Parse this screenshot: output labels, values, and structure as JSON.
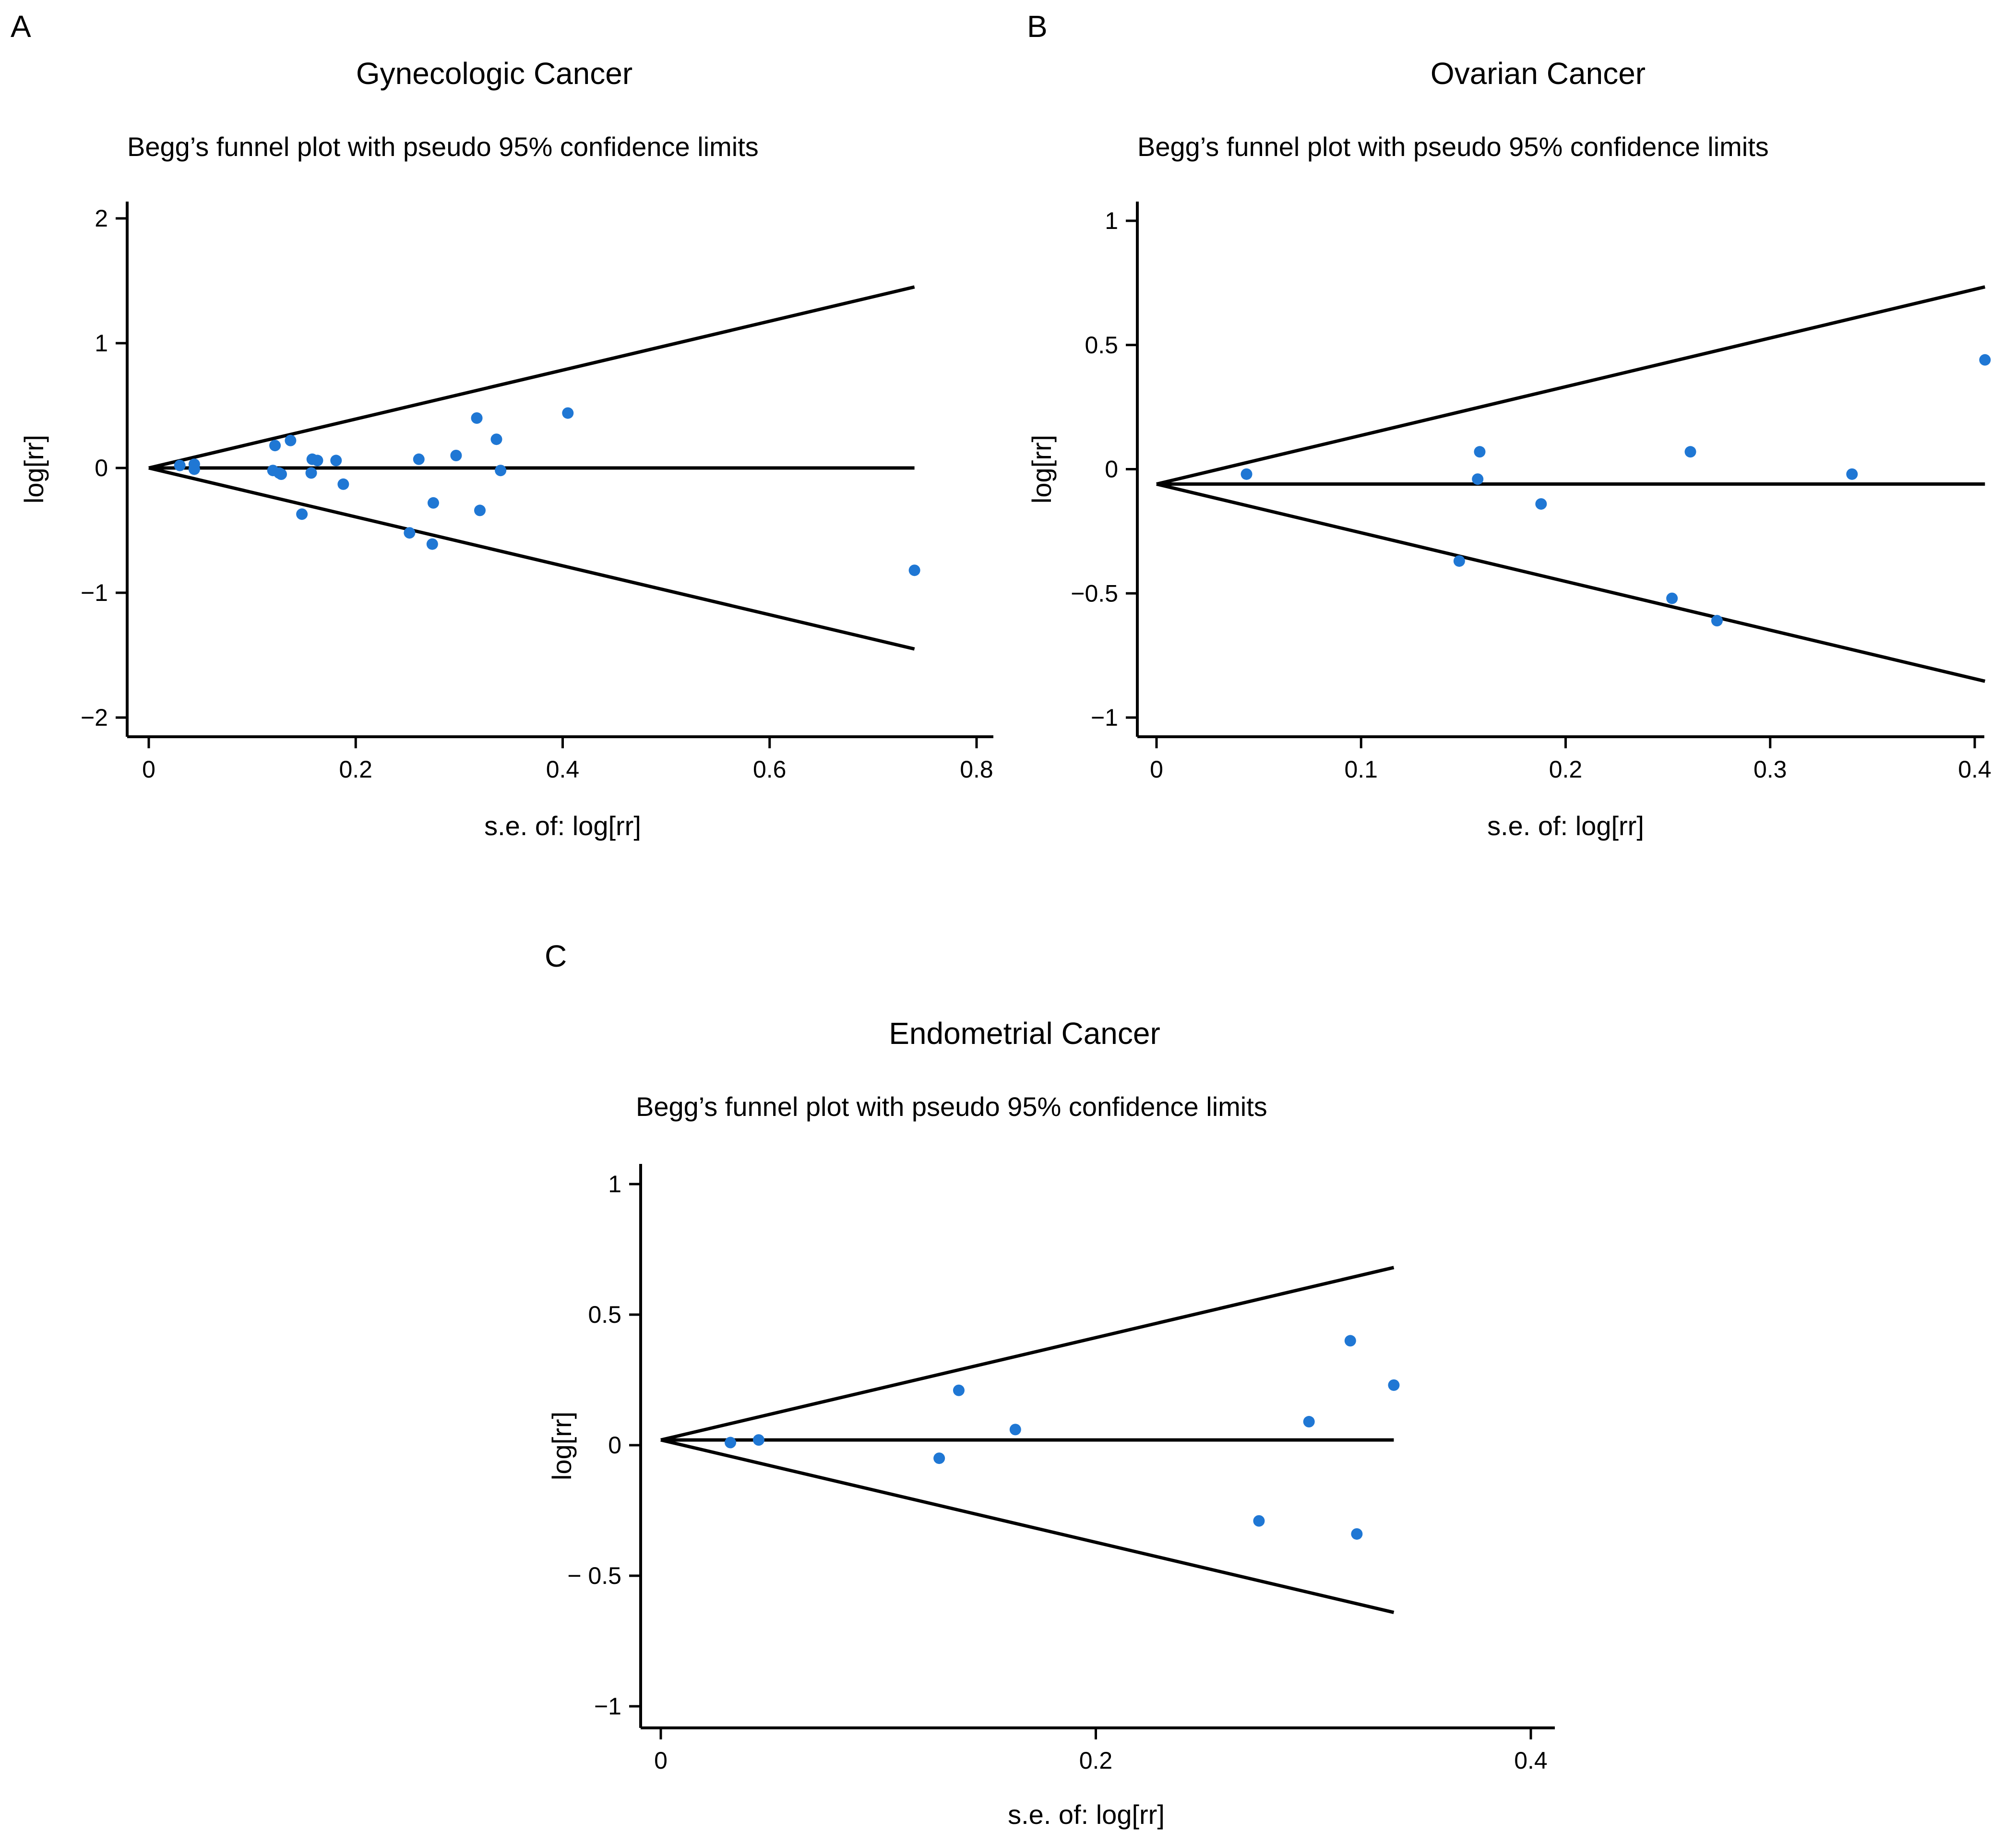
{
  "chart_data": [
    {
      "panel": "A",
      "type": "scatter",
      "title": "Gynecologic Cancer",
      "subtitle": "Begg’s funnel plot with pseudo 95% confidence limits",
      "xlabel": "s.e. of: log[rr]",
      "ylabel": "log[rr]",
      "xlim": [
        0,
        0.8
      ],
      "ylim": [
        -2,
        2
      ],
      "xticks": [
        0,
        0.2,
        0.4,
        0.6,
        0.8
      ],
      "xtick_labels": [
        "0",
        "0.2",
        "0.4",
        "0.6",
        "0.8"
      ],
      "yticks": [
        2,
        1,
        0,
        -1,
        -2
      ],
      "ytick_labels": [
        "2",
        "1",
        "0",
        "−1",
        "−2"
      ],
      "pooled_estimate": 0.0,
      "funnel_max_se": 0.74,
      "points": [
        {
          "x": 0.03,
          "y": 0.02
        },
        {
          "x": 0.044,
          "y": 0.03
        },
        {
          "x": 0.044,
          "y": -0.01
        },
        {
          "x": 0.12,
          "y": -0.02
        },
        {
          "x": 0.122,
          "y": 0.18
        },
        {
          "x": 0.126,
          "y": -0.04
        },
        {
          "x": 0.128,
          "y": -0.05
        },
        {
          "x": 0.137,
          "y": 0.22
        },
        {
          "x": 0.148,
          "y": -0.37
        },
        {
          "x": 0.157,
          "y": -0.04
        },
        {
          "x": 0.158,
          "y": 0.07
        },
        {
          "x": 0.163,
          "y": 0.06
        },
        {
          "x": 0.181,
          "y": 0.06
        },
        {
          "x": 0.188,
          "y": -0.13
        },
        {
          "x": 0.252,
          "y": -0.52
        },
        {
          "x": 0.261,
          "y": 0.07
        },
        {
          "x": 0.274,
          "y": -0.61
        },
        {
          "x": 0.275,
          "y": -0.28
        },
        {
          "x": 0.297,
          "y": 0.1
        },
        {
          "x": 0.317,
          "y": 0.4
        },
        {
          "x": 0.32,
          "y": -0.34
        },
        {
          "x": 0.336,
          "y": 0.23
        },
        {
          "x": 0.34,
          "y": -0.02
        },
        {
          "x": 0.405,
          "y": 0.44
        },
        {
          "x": 0.74,
          "y": -0.82
        }
      ]
    },
    {
      "panel": "B",
      "type": "scatter",
      "title": "Ovarian Cancer",
      "subtitle": "Begg’s funnel plot with pseudo 95% confidence limits",
      "xlabel": "s.e. of: log[rr]",
      "ylabel": "log[rr]",
      "xlim": [
        0,
        0.4
      ],
      "ylim": [
        -1,
        1
      ],
      "xticks": [
        0,
        0.1,
        0.2,
        0.3,
        0.4
      ],
      "xtick_labels": [
        "0",
        "0.1",
        "0.2",
        "0.3",
        "0.4"
      ],
      "yticks": [
        1,
        0.5,
        0,
        -0.5,
        -1
      ],
      "ytick_labels": [
        "1",
        "0.5",
        "0",
        "−0.5",
        "−1"
      ],
      "pooled_estimate": -0.06,
      "funnel_max_se": 0.405,
      "points": [
        {
          "x": 0.044,
          "y": -0.02
        },
        {
          "x": 0.148,
          "y": -0.37
        },
        {
          "x": 0.157,
          "y": -0.04
        },
        {
          "x": 0.158,
          "y": 0.07
        },
        {
          "x": 0.188,
          "y": -0.14
        },
        {
          "x": 0.252,
          "y": -0.52
        },
        {
          "x": 0.261,
          "y": 0.07
        },
        {
          "x": 0.274,
          "y": -0.61
        },
        {
          "x": 0.34,
          "y": -0.02
        },
        {
          "x": 0.405,
          "y": 0.44
        }
      ]
    },
    {
      "panel": "C",
      "type": "scatter",
      "title": "Endometrial Cancer",
      "subtitle": "Begg’s funnel plot with pseudo 95% confidence limits",
      "xlabel": "s.e. of: log[rr]",
      "ylabel": "log[rr]",
      "xlim": [
        0,
        0.4
      ],
      "ylim": [
        -1,
        1
      ],
      "xticks": [
        0,
        0.2,
        0.4
      ],
      "xtick_labels": [
        "0",
        "0.2",
        "0.4"
      ],
      "yticks": [
        1,
        0.5,
        0,
        -0.5,
        -1
      ],
      "ytick_labels": [
        "1",
        "0.5",
        "0",
        "− 0.5",
        "−1"
      ],
      "pooled_estimate": 0.02,
      "funnel_max_se": 0.337,
      "points": [
        {
          "x": 0.032,
          "y": 0.01
        },
        {
          "x": 0.045,
          "y": 0.02
        },
        {
          "x": 0.128,
          "y": -0.05
        },
        {
          "x": 0.137,
          "y": 0.21
        },
        {
          "x": 0.163,
          "y": 0.06
        },
        {
          "x": 0.275,
          "y": -0.29
        },
        {
          "x": 0.298,
          "y": 0.09
        },
        {
          "x": 0.317,
          "y": 0.4
        },
        {
          "x": 0.32,
          "y": -0.34
        },
        {
          "x": 0.337,
          "y": 0.23
        }
      ]
    }
  ]
}
